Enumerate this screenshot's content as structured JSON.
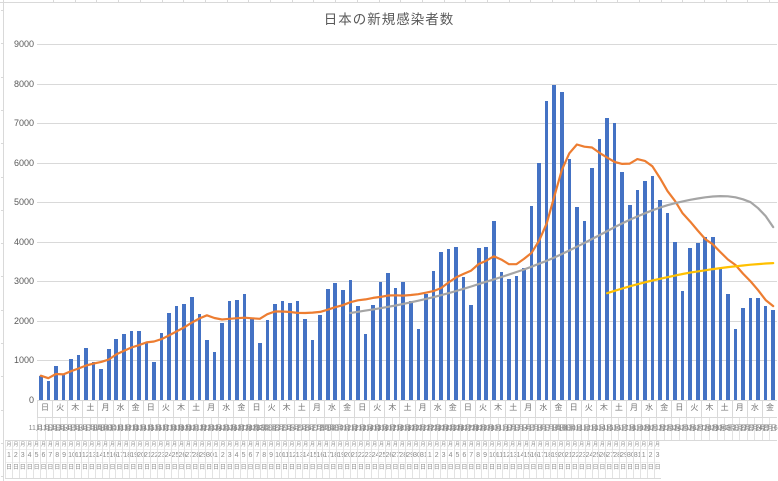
{
  "chart_data": {
    "type": "combo_bar_line",
    "title": "日本の新規感染者数",
    "ylabel": "",
    "xlabel": "",
    "ylim": [
      0,
      9000
    ],
    "y_ticks": [
      0,
      1000,
      2000,
      3000,
      4000,
      5000,
      6000,
      7000,
      8000,
      9000
    ],
    "grid": true,
    "legend": "none",
    "start_date": {
      "year": 2020,
      "month": 11,
      "day": 1,
      "weekday": "日"
    },
    "months": [
      {
        "month": 11,
        "num_days": 30
      },
      {
        "month": 12,
        "num_days": 31
      },
      {
        "month": 1,
        "num_days": 31
      },
      {
        "month": 2,
        "num_days": 6
      }
    ],
    "weekday_cycle": [
      "日",
      "月",
      "火",
      "水",
      "木",
      "金",
      "土"
    ],
    "weekday_label_every_n_days": 2,
    "month_suffix": "月",
    "day_suffix": "日",
    "vertical_date_label_count": 95,
    "series": [
      {
        "id": "daily-new-cases",
        "type": "bar",
        "color": "#4472C4",
        "values": [
          614,
          489,
          868,
          621,
          1048,
          1141,
          1325,
          951,
          780,
          1284,
          1547,
          1660,
          1738,
          1736,
          1440,
          951,
          1699,
          2201,
          2385,
          2427,
          2596,
          2168,
          1520,
          1213,
          1944,
          2504,
          2529,
          2684,
          2063,
          1435,
          2022,
          2427,
          2508,
          2442,
          2511,
          2046,
          1508,
          2147,
          2811,
          2962,
          2787,
          3039,
          2385,
          1676,
          2410,
          2987,
          3208,
          2829,
          2982,
          2494,
          1805,
          2686,
          3266,
          3740,
          3829,
          3877,
          3116,
          2392,
          3845,
          3858,
          4515,
          3248,
          3058,
          3127,
          3325,
          4915,
          6004,
          7570,
          7957,
          7790,
          6096,
          4876,
          4527,
          5870,
          6607,
          7133,
          7014,
          5759,
          4925,
          5320,
          5549,
          5653,
          5045,
          4717,
          3985,
          2764,
          3853,
          3971,
          4133,
          4132,
          3344,
          2673,
          1792,
          2324,
          2585,
          2577,
          2389,
          2277
        ]
      },
      {
        "id": "seven-day-average",
        "type": "line",
        "color": "#ED7D31",
        "derived": "trailing_7_day_average_of_daily-new-cases"
      },
      {
        "id": "gray-trend",
        "type": "line",
        "color": "#A5A5A5",
        "start_index": 41,
        "values": [
          2200,
          2230,
          2260,
          2290,
          2320,
          2355,
          2390,
          2430,
          2470,
          2510,
          2555,
          2600,
          2650,
          2700,
          2755,
          2810,
          2870,
          2930,
          2990,
          3050,
          3110,
          3170,
          3235,
          3300,
          3370,
          3445,
          3520,
          3600,
          3690,
          3780,
          3875,
          3970,
          4070,
          4170,
          4270,
          4370,
          4465,
          4555,
          4640,
          4720,
          4795,
          4865,
          4925,
          4975,
          5020,
          5060,
          5095,
          5125,
          5145,
          5155,
          5150,
          5125,
          5075,
          5000,
          4850,
          4650,
          4370
        ]
      },
      {
        "id": "yellow-trend",
        "type": "line",
        "color": "#FFC000",
        "start_index": 75,
        "values": [
          2700,
          2760,
          2820,
          2875,
          2925,
          2975,
          3020,
          3065,
          3105,
          3145,
          3185,
          3220,
          3250,
          3280,
          3310,
          3335,
          3360,
          3380,
          3400,
          3420,
          3435,
          3450,
          3460
        ]
      }
    ]
  },
  "colors": {
    "bar": "#4472C4",
    "avg_line": "#ED7D31",
    "gray_line": "#A5A5A5",
    "yellow_line": "#FFC000",
    "gridline": "#d9d9d9",
    "axis_text": "#595959",
    "label_text": "#8a8a8a"
  }
}
